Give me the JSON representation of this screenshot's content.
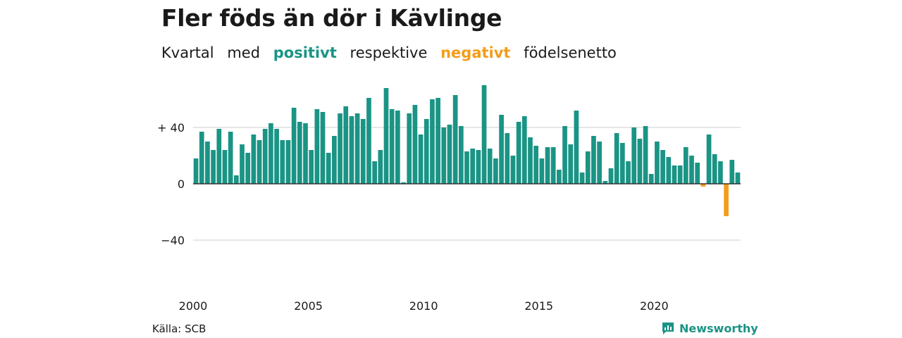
{
  "title": "Fler föds än dör i Kävlinge",
  "subtitle": {
    "w1": "Kvartal",
    "w2": "med",
    "positive": "positivt",
    "w3": "respektive",
    "negative": "negativt",
    "w4": "födelsenetto"
  },
  "source": "Källa: SCB",
  "brand": "Newsworthy",
  "colors": {
    "positive": "#1a9485",
    "negative": "#f29d1a",
    "grid": "#dddddd",
    "axis": "#333333"
  },
  "chart_data": {
    "type": "bar",
    "title": "Fler föds än dör i Kävlinge",
    "xlabel": "",
    "ylabel": "",
    "ylim": [
      -60,
      70
    ],
    "yticks": [
      {
        "value": 40,
        "label": "+ 40"
      },
      {
        "value": 0,
        "label": "0"
      },
      {
        "value": -40,
        "label": "−40"
      }
    ],
    "xticks": [
      "2000",
      "2005",
      "2010",
      "2015",
      "2020"
    ],
    "start": "2000 Q1",
    "frequency": "quarterly",
    "values": [
      18,
      37,
      30,
      24,
      39,
      24,
      37,
      6,
      28,
      22,
      35,
      31,
      39,
      43,
      39,
      31,
      31,
      54,
      44,
      43,
      24,
      53,
      51,
      22,
      34,
      50,
      55,
      48,
      50,
      46,
      61,
      16,
      24,
      68,
      53,
      52,
      1,
      50,
      56,
      35,
      46,
      60,
      61,
      40,
      42,
      63,
      41,
      23,
      25,
      24,
      70,
      25,
      18,
      49,
      36,
      20,
      44,
      48,
      33,
      27,
      18,
      26,
      26,
      10,
      41,
      28,
      52,
      8,
      23,
      34,
      30,
      2,
      11,
      36,
      29,
      16,
      40,
      32,
      41,
      7,
      30,
      24,
      19,
      13,
      13,
      26,
      20,
      15,
      -2,
      35,
      21,
      16,
      -23,
      17,
      8
    ],
    "grid": true
  }
}
